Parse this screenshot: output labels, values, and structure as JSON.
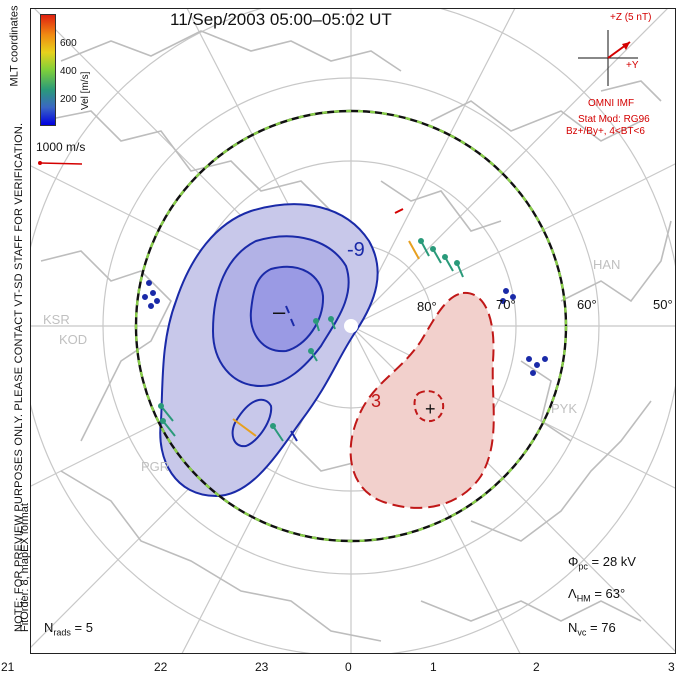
{
  "title": "11/Sep/2003 05:00–05:02 UT",
  "notice": "NOTE: FOR PREVIEW PURPOSES ONLY. PLEASE CONTACT VT-SD STAFF FOR VERIFICATION.",
  "fit_info": "FitOrder: 8, mapEX format",
  "coordinates_label": "MLT coordinates",
  "colorbar": {
    "label": "Vel [m/s]",
    "ticks": [
      "600",
      "400",
      "200"
    ],
    "colors": [
      "#0000e0",
      "#3a66c4",
      "#2a9a7a",
      "#7fcf3a",
      "#e7d21c",
      "#f08a12",
      "#e02010"
    ]
  },
  "vector_scale": "1000 m/s",
  "imf": {
    "z_label": "+Z (5 nT)",
    "y_label": "+Y",
    "source": "OMNI IMF",
    "model": "Stat Mod: RG96",
    "bin": "Bz+/By+, 4<BT<6"
  },
  "stats": {
    "phi_symbol": "Φ",
    "phi_sub": "pc",
    "phi_value": "= 28 kV",
    "lambda_symbol": "Λ",
    "lambda_sub": "HM",
    "lambda_value": "= 63°",
    "nvc_symbol": "N",
    "nvc_sub": "vc",
    "nvc_value": "= 76",
    "nrads_symbol": "N",
    "nrads_sub": "rads",
    "nrads_value": "= 5"
  },
  "contours": {
    "neg_label": "-9",
    "neg_marker": "–",
    "pos_label": "3",
    "pos_marker": "+"
  },
  "latitude_labels": [
    "80°",
    "70°",
    "60°",
    "50°"
  ],
  "mlt_labels": [
    "21",
    "22",
    "23",
    "0",
    "1",
    "2",
    "3"
  ],
  "radars": [
    "KSR",
    "KOD",
    "PGR",
    "HAN",
    "PYK"
  ],
  "palette": {
    "negative_line": "#1a2aa8",
    "negative_fill": "#c8c8ea",
    "negative_core": "#9a9ae4",
    "positive_line": "#c01818",
    "positive_fill": "#f2d0cc",
    "boundary": "#111111",
    "boundary_dash": "#8ad04a",
    "grid": "#c8c8c8",
    "coast": "#bdbdbd"
  }
}
